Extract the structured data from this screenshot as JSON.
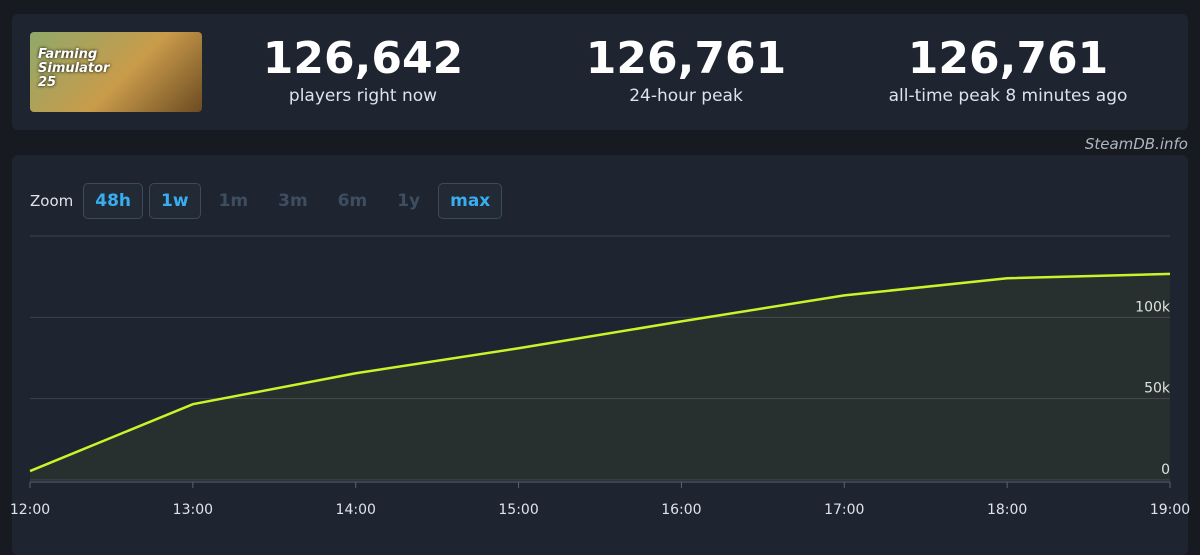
{
  "header": {
    "logo_text": "Farming Simulator 25",
    "stats": [
      {
        "value": "126,642",
        "label": "players right now"
      },
      {
        "value": "126,761",
        "label": "24-hour peak"
      },
      {
        "value": "126,761",
        "label": "all-time peak 8 minutes ago"
      }
    ],
    "source": "SteamDB.info"
  },
  "zoom": {
    "label": "Zoom",
    "options": [
      "48h",
      "1w",
      "1m",
      "3m",
      "6m",
      "1y",
      "max"
    ],
    "active": [
      "48h",
      "1w",
      "max"
    ]
  },
  "chart_data": {
    "type": "line",
    "categories": [
      "12:00",
      "13:00",
      "14:00",
      "15:00",
      "16:00",
      "17:00",
      "18:00",
      "19:00"
    ],
    "series": [
      {
        "name": "Players",
        "color": "#c8f52a",
        "values": [
          5500,
          46600,
          65600,
          81000,
          97500,
          113500,
          124000,
          126700
        ]
      }
    ],
    "ylim": [
      0,
      150000
    ],
    "yticks": [
      0,
      {
        "value": 50000,
        "label": "50k"
      },
      {
        "value": 100000,
        "label": "100k"
      }
    ],
    "grid": true
  }
}
